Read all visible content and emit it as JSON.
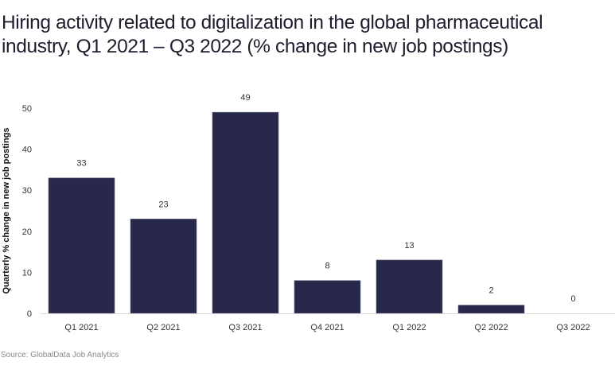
{
  "chart_data": {
    "type": "bar",
    "title": "Hiring activity related to digitalization in the global pharmaceutical industry, Q1 2021 – Q3 2022 (% change in new job postings)",
    "xlabel": "",
    "ylabel": "Quarterly % change in new job postings",
    "categories": [
      "Q1 2021",
      "Q2 2021",
      "Q3 2021",
      "Q4 2021",
      "Q1 2022",
      "Q2 2022",
      "Q3 2022"
    ],
    "values": [
      33,
      23,
      49,
      8,
      13,
      2,
      0
    ],
    "data_labels": [
      "33",
      "23",
      "49",
      "8",
      "13",
      "2",
      "0"
    ],
    "ylim": [
      0,
      50
    ],
    "yticks": [
      0,
      10,
      20,
      30,
      40,
      50
    ],
    "grid": false,
    "legend": "none",
    "bar_color": "#27284a",
    "source": "Source: GlobalData Job Analytics"
  }
}
